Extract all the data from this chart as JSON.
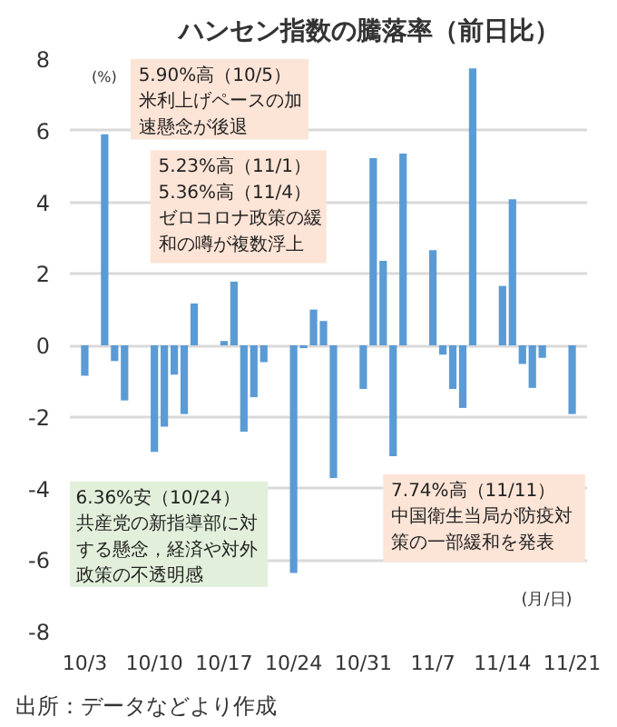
{
  "chart_data": {
    "type": "bar",
    "title": "ハンセン指数の騰落率（前日比）",
    "ylabel": "(%)",
    "xlabel": "(月/日)",
    "categories": [
      "10/3",
      null,
      null,
      null,
      null,
      null,
      null,
      "10/10",
      null,
      null,
      null,
      null,
      null,
      null,
      "10/17",
      null,
      null,
      null,
      null,
      null,
      null,
      "10/24",
      null,
      null,
      null,
      null,
      null,
      null,
      "10/31",
      null,
      null,
      null,
      null,
      null,
      null,
      "11/7",
      null,
      null,
      null,
      null,
      null,
      null,
      "11/14",
      null,
      null,
      null,
      null,
      null,
      null,
      "11/21"
    ],
    "values": [
      -0.85,
      null,
      5.9,
      -0.44,
      -1.54,
      null,
      null,
      -2.98,
      -2.27,
      -0.82,
      -1.92,
      1.17,
      null,
      null,
      0.12,
      1.78,
      -2.41,
      -1.45,
      -0.47,
      null,
      null,
      -6.36,
      -0.08,
      1.0,
      0.68,
      -3.71,
      null,
      null,
      -1.22,
      5.23,
      2.36,
      -3.1,
      5.36,
      null,
      null,
      2.66,
      -0.26,
      -1.22,
      -1.75,
      7.74,
      null,
      null,
      1.66,
      4.08,
      -0.52,
      -1.19,
      -0.35,
      null,
      null,
      -1.92
    ],
    "color": "#5b9bd5",
    "ylim": [
      -8,
      8
    ],
    "yticks": [
      -8,
      -6,
      -4,
      -2,
      0,
      2,
      4,
      6,
      8
    ],
    "grid": "y",
    "annotations": [
      "5.90%高（10/5）",
      "米利上げペースの加速懸念が後退",
      "5.23%高（11/1）",
      "5.36%高（11/4）",
      "ゼロコロナ政策の緩和の噂が複数浮上",
      "6.36%安（10/24）",
      "共産党の新指導部に対する懸念，経済や対外政策の不透明感",
      "7.74%高（11/11）",
      "中国衛生当局が防疫対策の一部緩和を発表",
      "出所：データなどより作成"
    ]
  }
}
